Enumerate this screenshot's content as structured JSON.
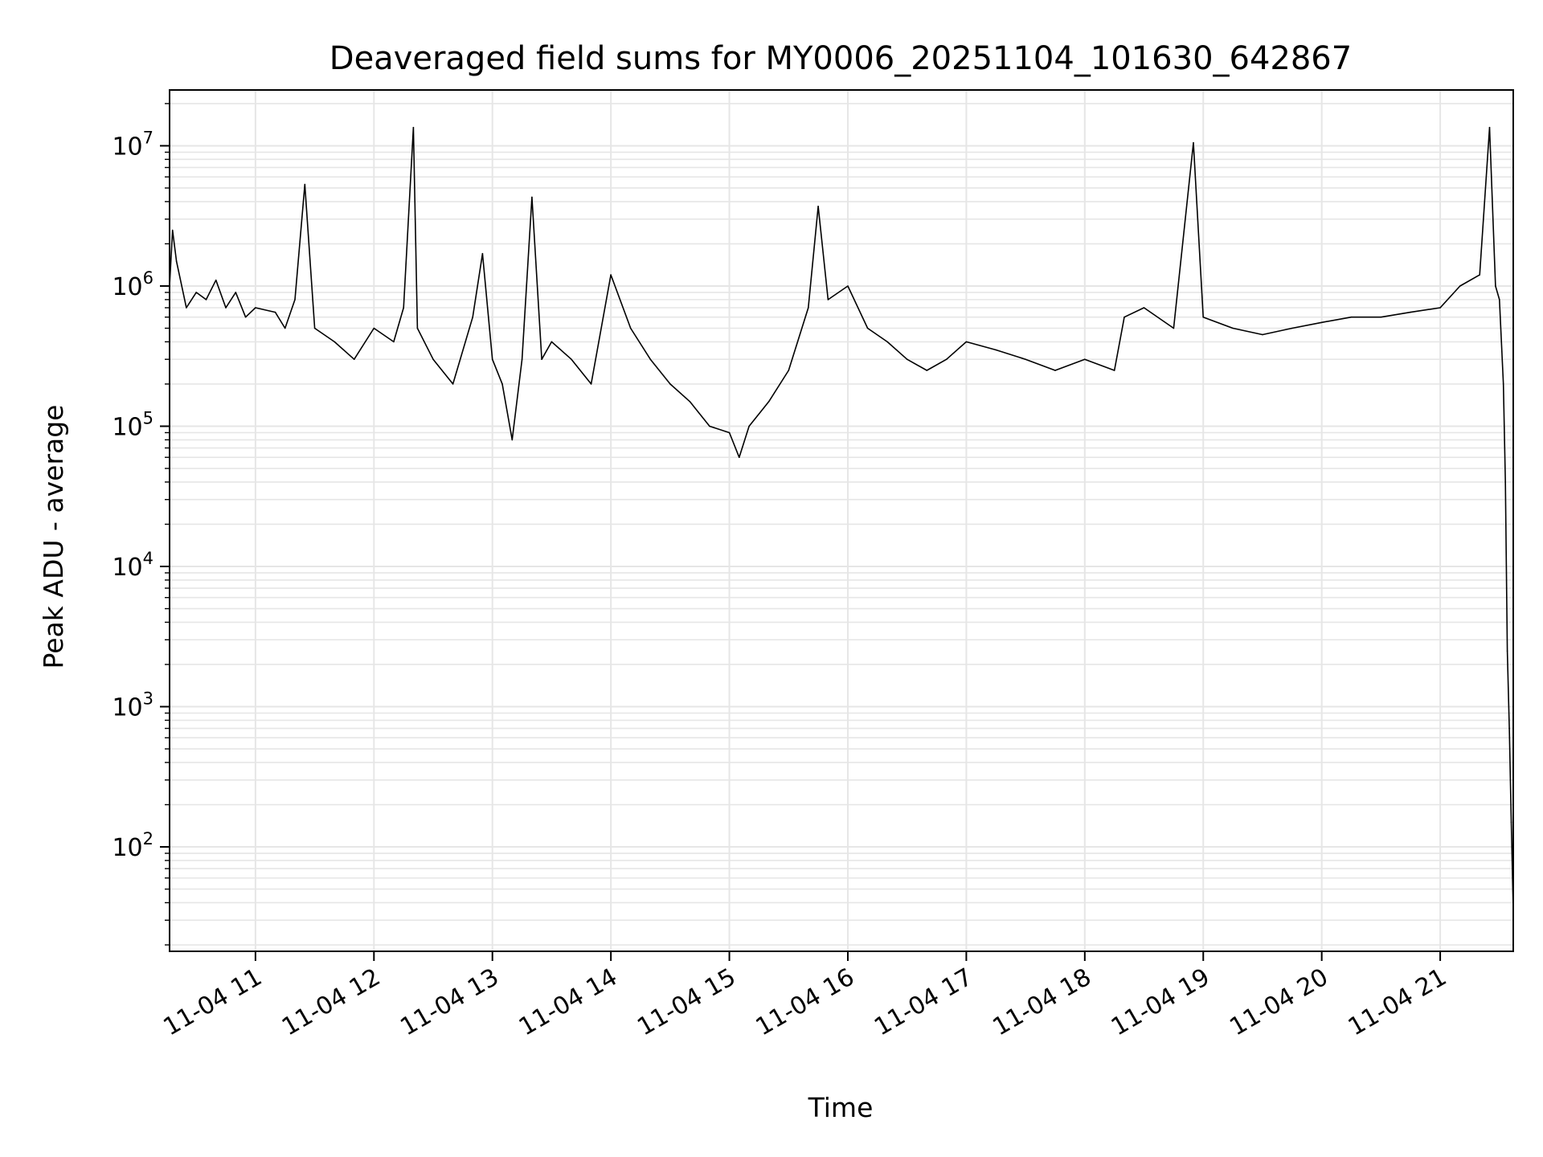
{
  "chart_data": {
    "type": "line",
    "title": "Deaveraged field sums for MY0006_20251104_101630_642867",
    "xlabel": "Time",
    "ylabel": "Peak ADU - average",
    "yscale": "log",
    "ylim": [
      18,
      25000000
    ],
    "xlim": [
      "2025-11-04 10:16:30",
      "2025-11-04 21:37:00"
    ],
    "grid": true,
    "line_color": "#000000",
    "grid_color": "#e6e6e6",
    "x_ticks": [
      {
        "t": "2025-11-04 11:00",
        "label": "11-04 11"
      },
      {
        "t": "2025-11-04 12:00",
        "label": "11-04 12"
      },
      {
        "t": "2025-11-04 13:00",
        "label": "11-04 13"
      },
      {
        "t": "2025-11-04 14:00",
        "label": "11-04 14"
      },
      {
        "t": "2025-11-04 15:00",
        "label": "11-04 15"
      },
      {
        "t": "2025-11-04 16:00",
        "label": "11-04 16"
      },
      {
        "t": "2025-11-04 17:00",
        "label": "11-04 17"
      },
      {
        "t": "2025-11-04 18:00",
        "label": "11-04 18"
      },
      {
        "t": "2025-11-04 19:00",
        "label": "11-04 19"
      },
      {
        "t": "2025-11-04 20:00",
        "label": "11-04 20"
      },
      {
        "t": "2025-11-04 21:00",
        "label": "11-04 21"
      }
    ],
    "y_ticks": [
      {
        "value": 100,
        "base": "10",
        "exp": "2"
      },
      {
        "value": 1000,
        "base": "10",
        "exp": "3"
      },
      {
        "value": 10000,
        "base": "10",
        "exp": "4"
      },
      {
        "value": 100000,
        "base": "10",
        "exp": "5"
      },
      {
        "value": 1000000,
        "base": "10",
        "exp": "6"
      },
      {
        "value": 10000000,
        "base": "10",
        "exp": "7"
      }
    ],
    "series": [
      {
        "points": [
          [
            "2025-11-04 10:16:30",
            1000000
          ],
          [
            "2025-11-04 10:18:00",
            2500000
          ],
          [
            "2025-11-04 10:20:00",
            1500000
          ],
          [
            "2025-11-04 10:25:00",
            700000
          ],
          [
            "2025-11-04 10:30:00",
            900000
          ],
          [
            "2025-11-04 10:35:00",
            800000
          ],
          [
            "2025-11-04 10:40:00",
            1100000
          ],
          [
            "2025-11-04 10:45:00",
            700000
          ],
          [
            "2025-11-04 10:50:00",
            900000
          ],
          [
            "2025-11-04 10:55:00",
            600000
          ],
          [
            "2025-11-04 11:00:00",
            700000
          ],
          [
            "2025-11-04 11:10:00",
            650000
          ],
          [
            "2025-11-04 11:15:00",
            500000
          ],
          [
            "2025-11-04 11:20:00",
            800000
          ],
          [
            "2025-11-04 11:25:00",
            5300000
          ],
          [
            "2025-11-04 11:30:00",
            500000
          ],
          [
            "2025-11-04 11:40:00",
            400000
          ],
          [
            "2025-11-04 11:50:00",
            300000
          ],
          [
            "2025-11-04 12:00:00",
            500000
          ],
          [
            "2025-11-04 12:10:00",
            400000
          ],
          [
            "2025-11-04 12:15:00",
            700000
          ],
          [
            "2025-11-04 12:20:00",
            13500000
          ],
          [
            "2025-11-04 12:22:00",
            500000
          ],
          [
            "2025-11-04 12:30:00",
            300000
          ],
          [
            "2025-11-04 12:40:00",
            200000
          ],
          [
            "2025-11-04 12:50:00",
            600000
          ],
          [
            "2025-11-04 12:55:00",
            1700000
          ],
          [
            "2025-11-04 13:00:00",
            300000
          ],
          [
            "2025-11-04 13:05:00",
            200000
          ],
          [
            "2025-11-04 13:10:00",
            80000
          ],
          [
            "2025-11-04 13:15:00",
            300000
          ],
          [
            "2025-11-04 13:20:00",
            4300000
          ],
          [
            "2025-11-04 13:25:00",
            300000
          ],
          [
            "2025-11-04 13:30:00",
            400000
          ],
          [
            "2025-11-04 13:40:00",
            300000
          ],
          [
            "2025-11-04 13:50:00",
            200000
          ],
          [
            "2025-11-04 14:00:00",
            1200000
          ],
          [
            "2025-11-04 14:10:00",
            500000
          ],
          [
            "2025-11-04 14:20:00",
            300000
          ],
          [
            "2025-11-04 14:30:00",
            200000
          ],
          [
            "2025-11-04 14:40:00",
            150000
          ],
          [
            "2025-11-04 14:50:00",
            100000
          ],
          [
            "2025-11-04 15:00:00",
            90000
          ],
          [
            "2025-11-04 15:05:00",
            60000
          ],
          [
            "2025-11-04 15:10:00",
            100000
          ],
          [
            "2025-11-04 15:20:00",
            150000
          ],
          [
            "2025-11-04 15:30:00",
            250000
          ],
          [
            "2025-11-04 15:40:00",
            700000
          ],
          [
            "2025-11-04 15:45:00",
            3700000
          ],
          [
            "2025-11-04 15:50:00",
            800000
          ],
          [
            "2025-11-04 16:00:00",
            1000000
          ],
          [
            "2025-11-04 16:10:00",
            500000
          ],
          [
            "2025-11-04 16:20:00",
            400000
          ],
          [
            "2025-11-04 16:30:00",
            300000
          ],
          [
            "2025-11-04 16:40:00",
            250000
          ],
          [
            "2025-11-04 16:50:00",
            300000
          ],
          [
            "2025-11-04 17:00:00",
            400000
          ],
          [
            "2025-11-04 17:15:00",
            350000
          ],
          [
            "2025-11-04 17:30:00",
            300000
          ],
          [
            "2025-11-04 17:45:00",
            250000
          ],
          [
            "2025-11-04 18:00:00",
            300000
          ],
          [
            "2025-11-04 18:15:00",
            250000
          ],
          [
            "2025-11-04 18:20:00",
            600000
          ],
          [
            "2025-11-04 18:30:00",
            700000
          ],
          [
            "2025-11-04 18:45:00",
            500000
          ],
          [
            "2025-11-04 18:55:00",
            10500000
          ],
          [
            "2025-11-04 19:00:00",
            600000
          ],
          [
            "2025-11-04 19:15:00",
            500000
          ],
          [
            "2025-11-04 19:30:00",
            450000
          ],
          [
            "2025-11-04 19:45:00",
            500000
          ],
          [
            "2025-11-04 20:00:00",
            550000
          ],
          [
            "2025-11-04 20:15:00",
            600000
          ],
          [
            "2025-11-04 20:30:00",
            600000
          ],
          [
            "2025-11-04 20:45:00",
            650000
          ],
          [
            "2025-11-04 21:00:00",
            700000
          ],
          [
            "2025-11-04 21:10:00",
            1000000
          ],
          [
            "2025-11-04 21:20:00",
            1200000
          ],
          [
            "2025-11-04 21:25:00",
            13500000
          ],
          [
            "2025-11-04 21:28:00",
            1000000
          ],
          [
            "2025-11-04 21:30:00",
            800000
          ],
          [
            "2025-11-04 21:32:00",
            200000
          ],
          [
            "2025-11-04 21:33:00",
            40000
          ],
          [
            "2025-11-04 21:34:00",
            2500
          ],
          [
            "2025-11-04 21:35:00",
            700
          ],
          [
            "2025-11-04 21:36:00",
            150
          ],
          [
            "2025-11-04 21:37:00",
            35
          ]
        ]
      }
    ]
  }
}
